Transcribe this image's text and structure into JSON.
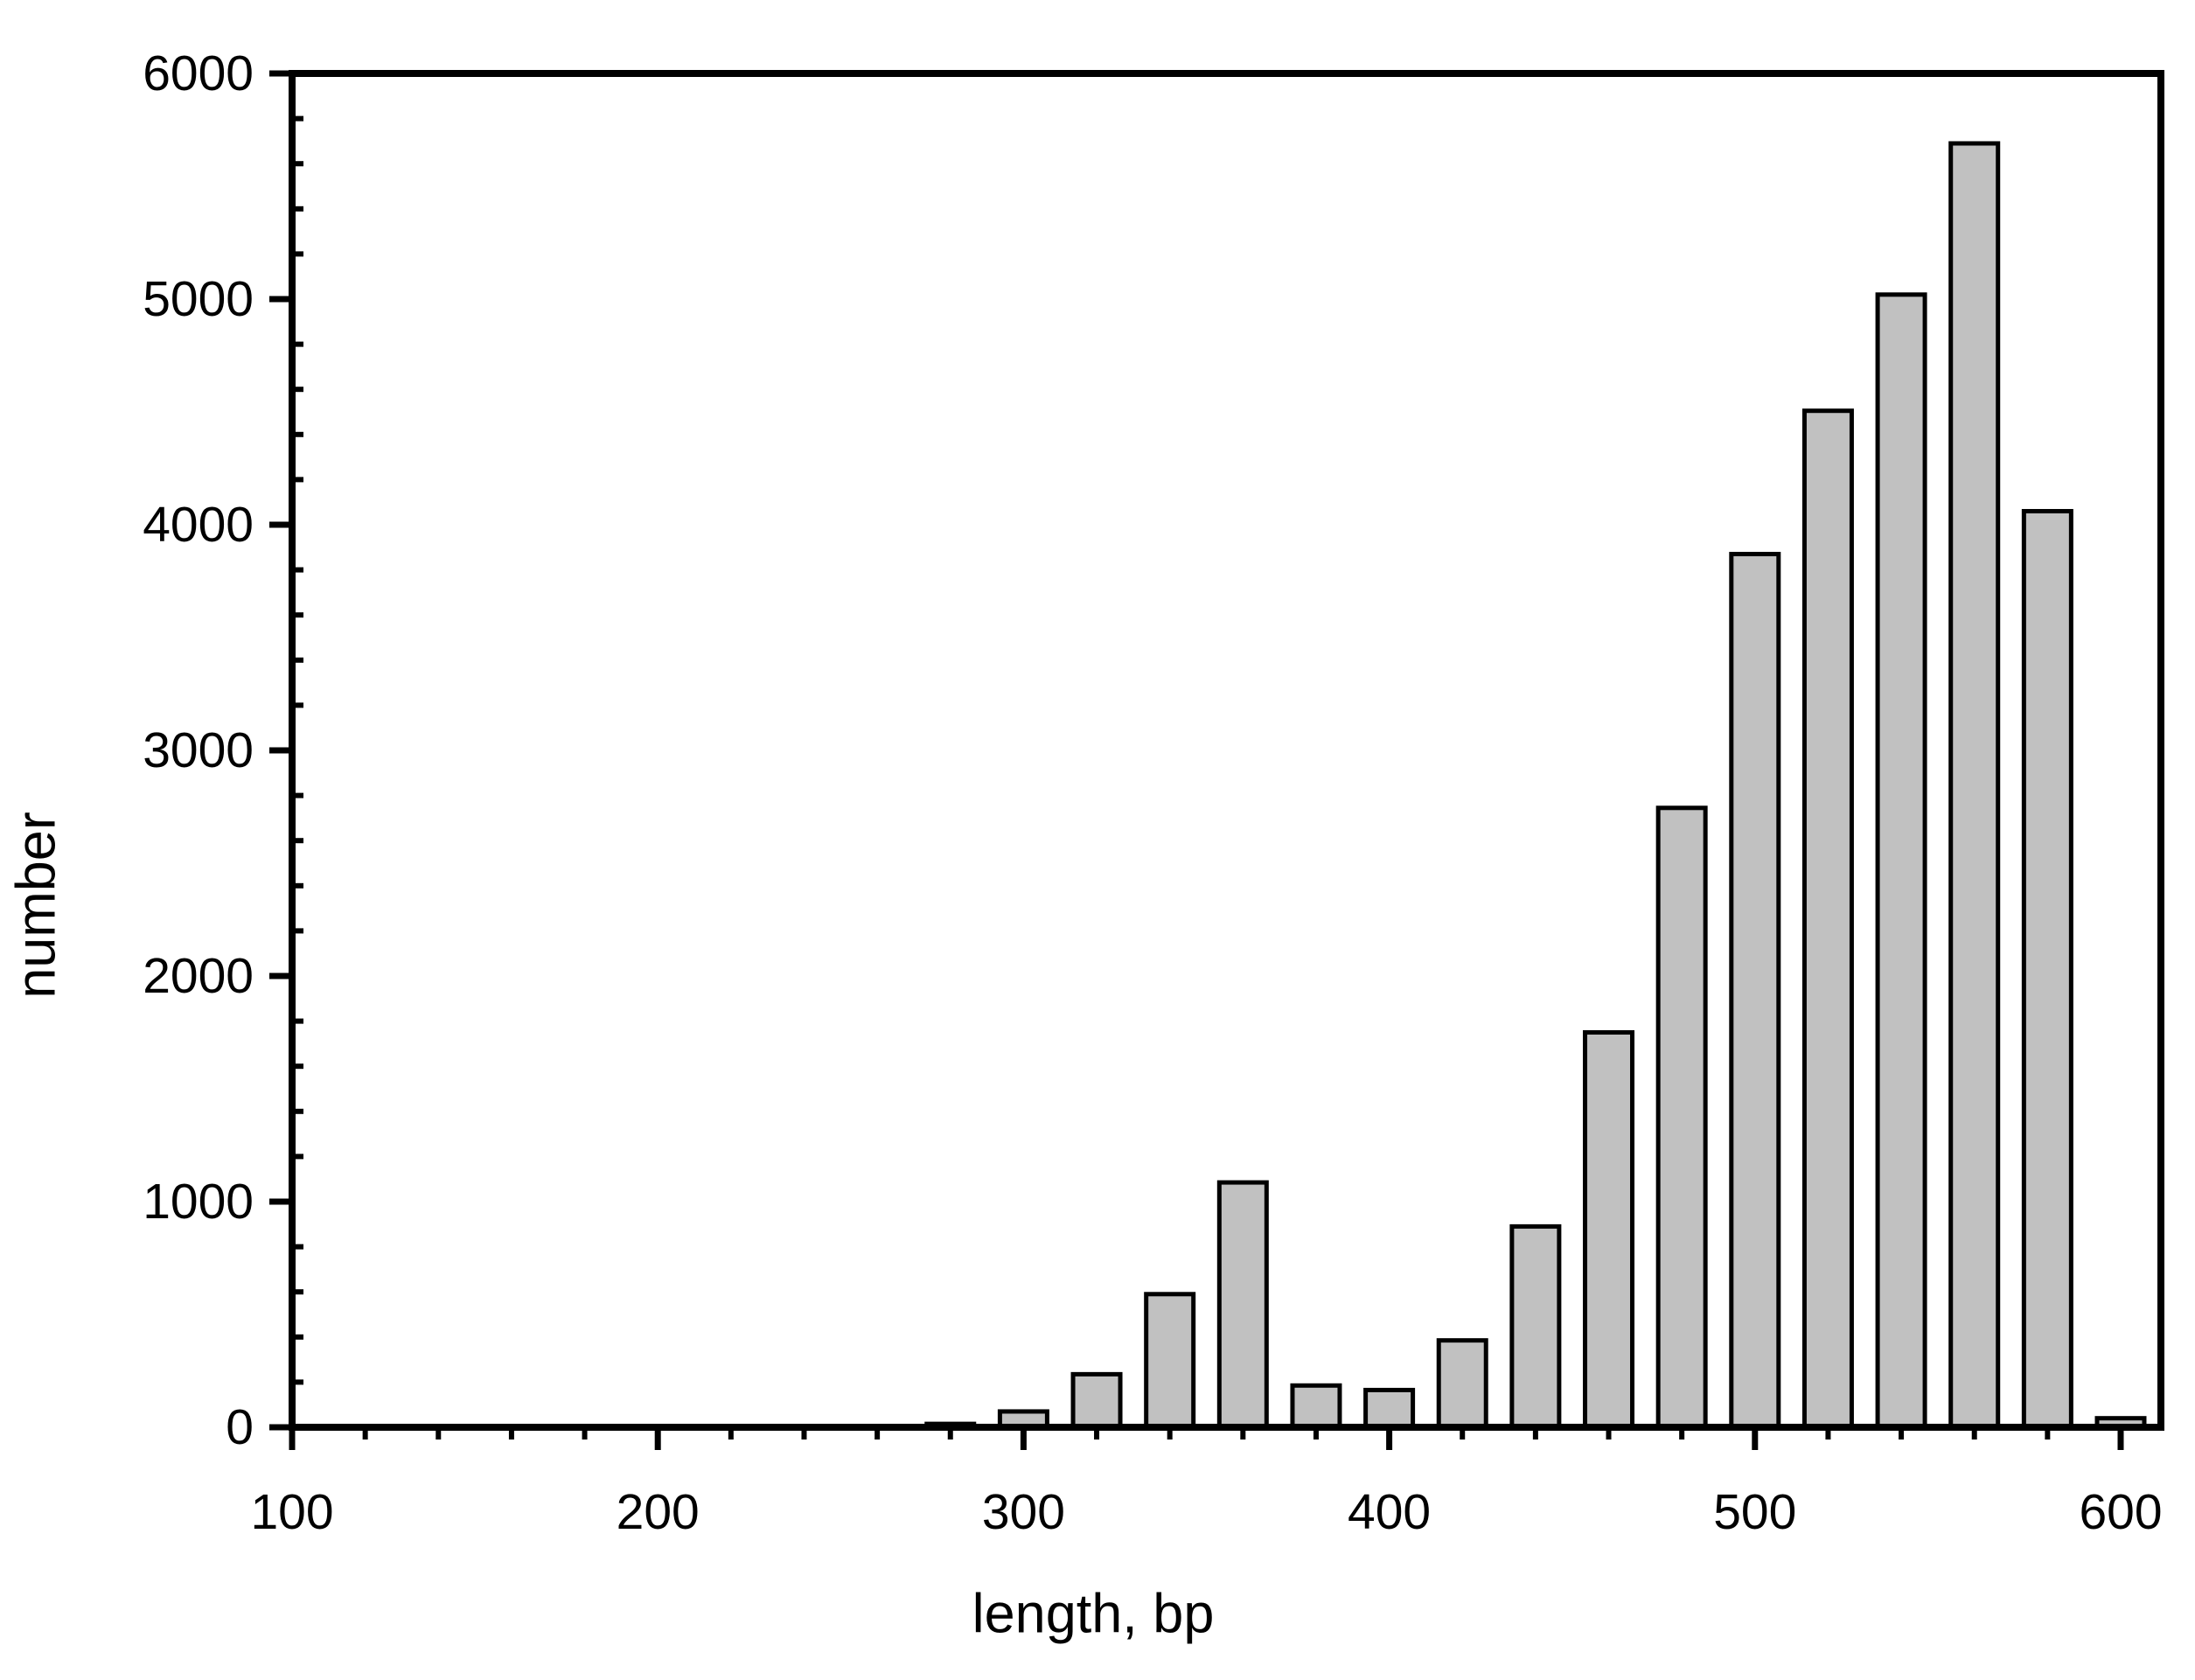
{
  "figure": {
    "background": "#ffffff",
    "text_color": "#000000"
  },
  "chart_data": {
    "type": "bar",
    "title": "",
    "xlabel": "length, bp",
    "ylabel": "number",
    "categories": [
      280,
      300,
      320,
      340,
      360,
      380,
      400,
      420,
      440,
      460,
      480,
      500,
      520,
      540,
      560,
      580,
      600
    ],
    "values": [
      15,
      70,
      235,
      590,
      1085,
      185,
      165,
      385,
      890,
      1750,
      2745,
      3870,
      4505,
      5020,
      5690,
      4060,
      40
    ],
    "bin_width_bp": 20,
    "xlim": [
      100,
      611
    ],
    "ylim": [
      0,
      6000
    ],
    "x_ticks_major": [
      100,
      200,
      300,
      400,
      500,
      600
    ],
    "y_ticks_major": [
      0,
      1000,
      2000,
      3000,
      4000,
      5000,
      6000
    ],
    "x_minor_step": 20,
    "y_minor_step": 200,
    "grid": "off",
    "legend": "none",
    "frame": "box",
    "bar_fill": "#c1c1c1",
    "bar_stroke": "#000000",
    "axis_color": "#000000"
  }
}
